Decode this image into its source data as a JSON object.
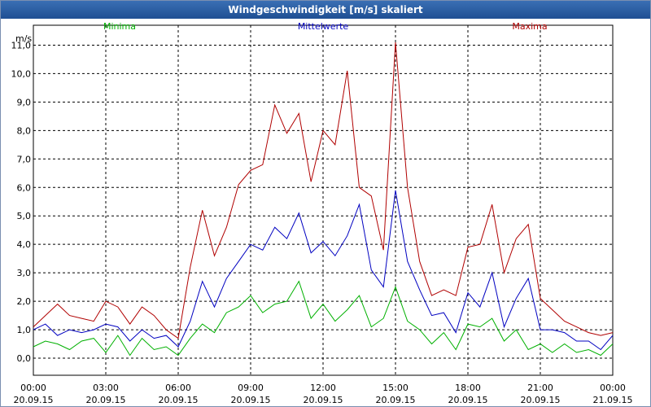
{
  "chart_data": {
    "type": "line",
    "title": "Windgeschwindigkeit [m/s] skaliert",
    "ylabel": "m/s",
    "ylim": [
      -0.6,
      11.7
    ],
    "xlim_hours": [
      0,
      24
    ],
    "grid": true,
    "yticks": [
      0,
      1,
      2,
      3,
      4,
      5,
      6,
      7,
      8,
      9,
      10,
      11
    ],
    "ytick_labels": [
      "0,0",
      "1,0",
      "2,0",
      "3,0",
      "4,0",
      "5,0",
      "6,0",
      "7,0",
      "8,0",
      "9,0",
      "10,0",
      "11,0"
    ],
    "xticks": [
      0,
      3,
      6,
      9,
      12,
      15,
      18,
      21,
      24
    ],
    "xtick_times": [
      "00:00",
      "03:00",
      "06:00",
      "09:00",
      "12:00",
      "15:00",
      "18:00",
      "21:00",
      "00:00"
    ],
    "xtick_dates": [
      "20.09.15",
      "20.09.15",
      "20.09.15",
      "20.09.15",
      "20.09.15",
      "20.09.15",
      "20.09.15",
      "20.09.15",
      "21.09.15"
    ],
    "series": [
      {
        "name": "Minima",
        "color": "#00b000",
        "x": [
          0,
          0.5,
          1,
          1.5,
          2,
          2.5,
          3,
          3.5,
          4,
          4.5,
          5,
          5.5,
          6,
          6.5,
          7,
          7.5,
          8,
          8.5,
          9,
          9.5,
          10,
          10.5,
          11,
          11.5,
          12,
          12.5,
          13,
          13.5,
          14,
          14.5,
          15,
          15.5,
          16,
          16.5,
          17,
          17.5,
          18,
          18.5,
          19,
          19.5,
          20,
          20.5,
          21,
          21.5,
          22,
          22.5,
          23,
          23.5,
          24
        ],
        "values": [
          0.4,
          0.6,
          0.5,
          0.3,
          0.6,
          0.7,
          0.2,
          0.8,
          0.1,
          0.7,
          0.3,
          0.4,
          0.1,
          0.7,
          1.2,
          0.9,
          1.6,
          1.8,
          2.2,
          1.6,
          1.9,
          2.0,
          2.7,
          1.4,
          1.9,
          1.3,
          1.7,
          2.2,
          1.1,
          1.4,
          2.5,
          1.3,
          1.0,
          0.5,
          0.9,
          0.3,
          1.2,
          1.1,
          1.4,
          0.6,
          1.0,
          0.3,
          0.5,
          0.2,
          0.5,
          0.2,
          0.3,
          0.1,
          0.5
        ]
      },
      {
        "name": "Mittelwerte",
        "color": "#0000c0",
        "x": [
          0,
          0.5,
          1,
          1.5,
          2,
          2.5,
          3,
          3.5,
          4,
          4.5,
          5,
          5.5,
          6,
          6.5,
          7,
          7.5,
          8,
          8.5,
          9,
          9.5,
          10,
          10.5,
          11,
          11.5,
          12,
          12.5,
          13,
          13.5,
          14,
          14.5,
          15,
          15.5,
          16,
          16.5,
          17,
          17.5,
          18,
          18.5,
          19,
          19.5,
          20,
          20.5,
          21,
          21.5,
          22,
          22.5,
          23,
          23.5,
          24
        ],
        "values": [
          1.0,
          1.2,
          0.8,
          1.0,
          0.9,
          1.0,
          1.2,
          1.1,
          0.6,
          1.0,
          0.7,
          0.8,
          0.4,
          1.3,
          2.7,
          1.8,
          2.8,
          3.4,
          4.0,
          3.8,
          4.6,
          4.2,
          5.1,
          3.7,
          4.1,
          3.6,
          4.3,
          5.4,
          3.1,
          2.5,
          5.9,
          3.4,
          2.4,
          1.5,
          1.6,
          0.9,
          2.3,
          1.8,
          3.0,
          1.1,
          2.1,
          2.8,
          1.0,
          1.0,
          0.9,
          0.6,
          0.6,
          0.3,
          0.8
        ]
      },
      {
        "name": "Maxima",
        "color": "#b00000",
        "x": [
          0,
          0.5,
          1,
          1.5,
          2,
          2.5,
          3,
          3.5,
          4,
          4.5,
          5,
          5.5,
          6,
          6.5,
          7,
          7.5,
          8,
          8.5,
          9,
          9.5,
          10,
          10.5,
          11,
          11.5,
          12,
          12.5,
          13,
          13.5,
          14,
          14.5,
          15,
          15.5,
          16,
          16.5,
          17,
          17.5,
          18,
          18.5,
          19,
          19.5,
          20,
          20.5,
          21,
          21.5,
          22,
          22.5,
          23,
          23.5,
          24
        ],
        "values": [
          1.1,
          1.5,
          1.9,
          1.5,
          1.4,
          1.3,
          2.0,
          1.8,
          1.2,
          1.8,
          1.5,
          1.0,
          0.7,
          3.2,
          5.2,
          3.6,
          4.6,
          6.1,
          6.6,
          6.8,
          8.9,
          7.9,
          8.6,
          6.2,
          8.0,
          7.5,
          10.1,
          6.0,
          5.7,
          3.8,
          11.1,
          6.0,
          3.4,
          2.2,
          2.4,
          2.2,
          3.9,
          4.0,
          5.4,
          3.0,
          4.2,
          4.7,
          2.1,
          1.7,
          1.3,
          1.1,
          0.9,
          0.8,
          0.9
        ]
      }
    ]
  }
}
